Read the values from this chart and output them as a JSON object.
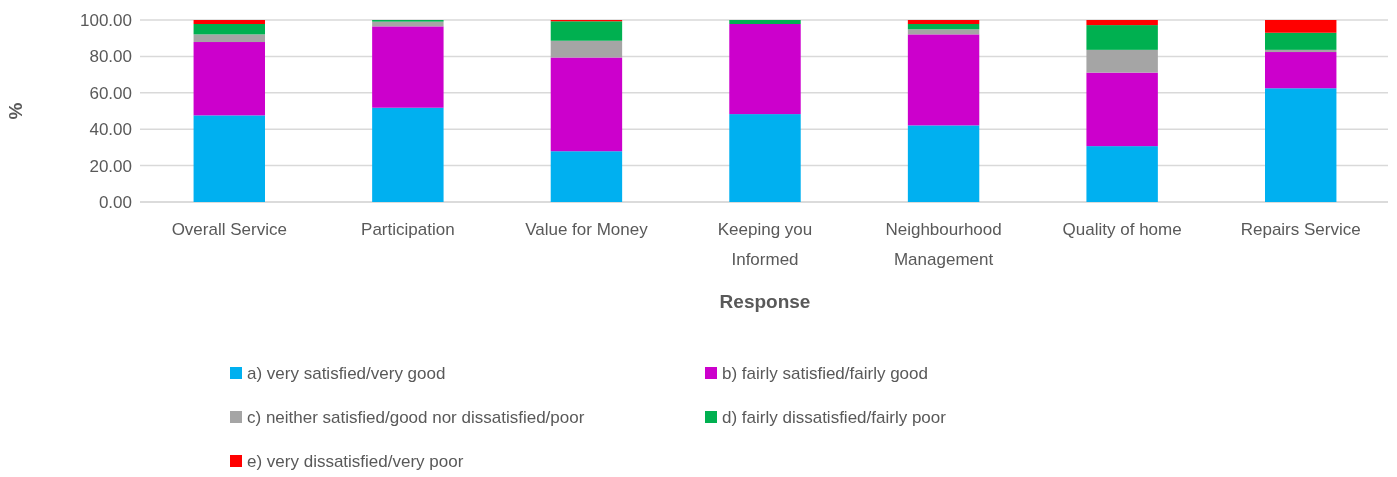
{
  "chart_data": {
    "type": "bar",
    "stacked": true,
    "xlabel": "Response",
    "ylabel": "%",
    "categories": [
      "Overall Service",
      "Participation",
      "Value for Money",
      "Keeping you Informed",
      "Neighbourhood Management",
      "Quality of home",
      "Repairs Service"
    ],
    "series": [
      {
        "name": "a) very satisfied/very good",
        "color": "#00b0f0",
        "values": [
          47.6,
          51.8,
          27.9,
          48.3,
          42.1,
          30.7,
          62.5
        ]
      },
      {
        "name": "b) fairly satisfied/fairly good",
        "color": "#cc00cc",
        "values": [
          40.3,
          44.7,
          51.5,
          49.5,
          50.0,
          40.4,
          19.9
        ]
      },
      {
        "name": "c) neither satisfied/good nor dissatisfied/poor",
        "color": "#a5a5a5",
        "values": [
          4.2,
          2.6,
          9.2,
          0,
          2.8,
          12.5,
          1.2
        ]
      },
      {
        "name": "d) fairly dissatisfied/fairly poor",
        "color": "#00b050",
        "values": [
          5.7,
          0.9,
          10.7,
          2.2,
          2.9,
          13.6,
          9.4
        ]
      },
      {
        "name": "e) very dissatisfied/very poor",
        "color": "#ff0000",
        "values": [
          2.2,
          0,
          0.7,
          0,
          2.2,
          2.8,
          7.0
        ]
      }
    ],
    "ylim": [
      0,
      100
    ],
    "yticks": [
      {
        "value": 0,
        "label": "0.00"
      },
      {
        "value": 20,
        "label": "20.00"
      },
      {
        "value": 40,
        "label": "40.00"
      },
      {
        "value": 60,
        "label": "60.00"
      },
      {
        "value": 80,
        "label": "80.00"
      },
      {
        "value": 100,
        "label": "100.00"
      }
    ],
    "grid": "y",
    "legend": "bottom"
  }
}
